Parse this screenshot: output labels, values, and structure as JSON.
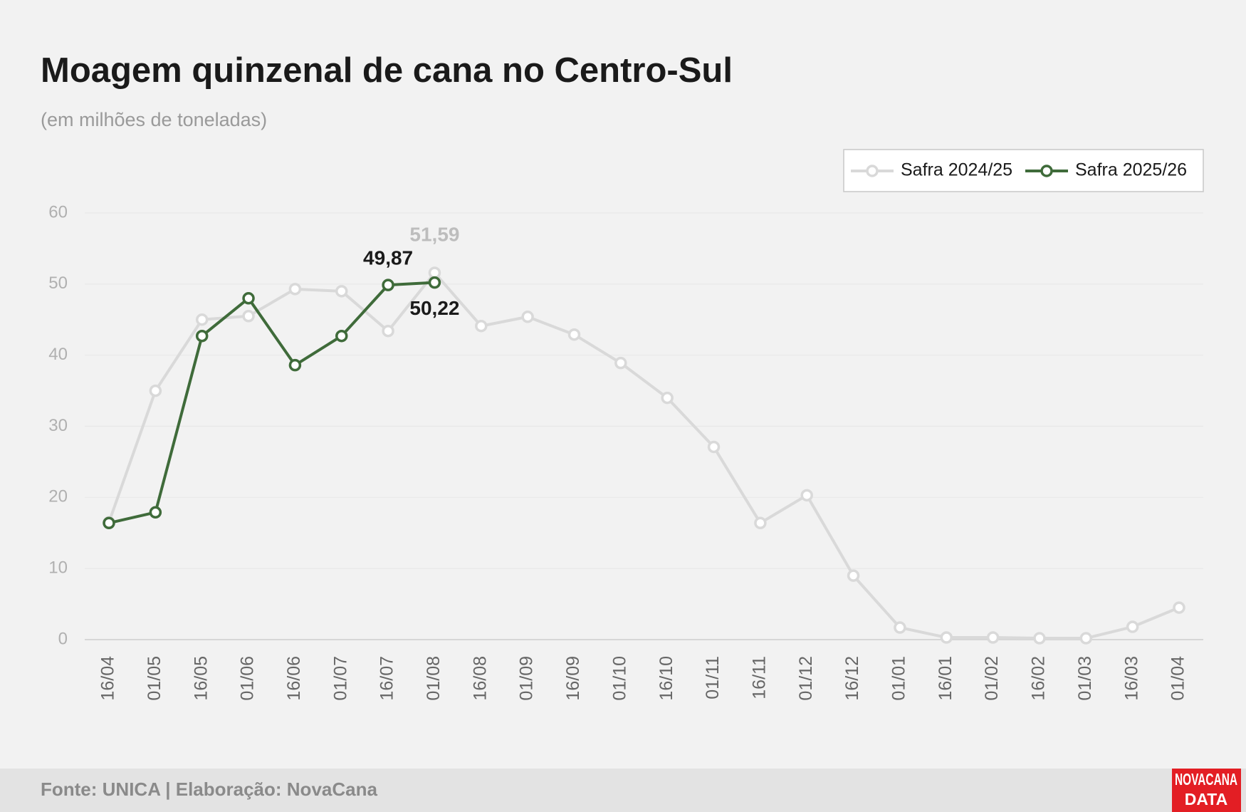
{
  "chart_data": {
    "type": "line",
    "title": "Moagem quinzenal de cana no Centro-Sul",
    "subtitle": "(em milhões de toneladas)",
    "categories": [
      "16/04",
      "01/05",
      "16/05",
      "01/06",
      "16/06",
      "01/07",
      "16/07",
      "01/08",
      "16/08",
      "01/09",
      "16/09",
      "01/10",
      "16/10",
      "01/11",
      "16/11",
      "01/12",
      "16/12",
      "01/01",
      "16/01",
      "01/02",
      "16/02",
      "01/03",
      "16/03",
      "01/04"
    ],
    "series": [
      {
        "name": "Safra 2024/25",
        "color": "#d9d9d9",
        "values": [
          16.5,
          35.0,
          45.0,
          45.5,
          49.3,
          49.0,
          43.4,
          51.59,
          44.1,
          45.4,
          42.9,
          38.9,
          34.0,
          27.1,
          16.4,
          20.3,
          9.0,
          1.7,
          0.3,
          0.3,
          0.2,
          0.2,
          1.8,
          4.5
        ],
        "value_labels": [
          null,
          null,
          null,
          null,
          null,
          null,
          null,
          "51,59",
          null,
          null,
          null,
          null,
          null,
          null,
          null,
          null,
          null,
          null,
          null,
          null,
          null,
          null,
          null,
          null
        ]
      },
      {
        "name": "Safra 2025/26",
        "color": "#3f6b3a",
        "values": [
          16.4,
          17.9,
          42.7,
          48.0,
          38.6,
          42.7,
          49.87,
          50.22,
          null,
          null,
          null,
          null,
          null,
          null,
          null,
          null,
          null,
          null,
          null,
          null,
          null,
          null,
          null,
          null
        ],
        "value_labels": [
          null,
          null,
          null,
          null,
          null,
          null,
          "49,87",
          "50,22",
          null,
          null,
          null,
          null,
          null,
          null,
          null,
          null,
          null,
          null,
          null,
          null,
          null,
          null,
          null,
          null
        ]
      }
    ],
    "ylim": [
      0,
      60
    ],
    "yticks": [
      0,
      10,
      20,
      30,
      40,
      50,
      60
    ],
    "grid": true,
    "legend": "top-right",
    "source": "Fonte: UNICA | Elaboração: NovaCana",
    "logo": {
      "line1": "NOVACANA",
      "line2": "DATA"
    }
  }
}
